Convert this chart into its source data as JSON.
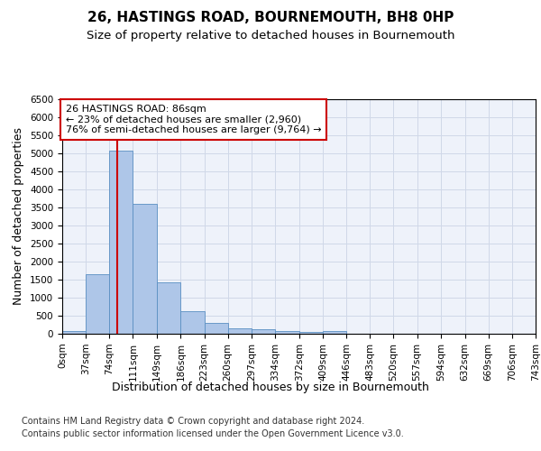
{
  "title_line1": "26, HASTINGS ROAD, BOURNEMOUTH, BH8 0HP",
  "title_line2": "Size of property relative to detached houses in Bournemouth",
  "xlabel": "Distribution of detached houses by size in Bournemouth",
  "ylabel": "Number of detached properties",
  "footnote1": "Contains HM Land Registry data © Crown copyright and database right 2024.",
  "footnote2": "Contains public sector information licensed under the Open Government Licence v3.0.",
  "annotation_line1": "26 HASTINGS ROAD: 86sqm",
  "annotation_line2": "← 23% of detached houses are smaller (2,960)",
  "annotation_line3": "76% of semi-detached houses are larger (9,764) →",
  "property_size": 86,
  "bin_edges": [
    0,
    37,
    74,
    111,
    149,
    186,
    223,
    260,
    297,
    334,
    372,
    409,
    446,
    483,
    520,
    557,
    594,
    632,
    669,
    706,
    743
  ],
  "bar_heights": [
    75,
    1650,
    5080,
    3600,
    1420,
    620,
    295,
    150,
    115,
    80,
    55,
    75,
    0,
    0,
    0,
    0,
    0,
    0,
    0,
    0
  ],
  "bar_color": "#aec6e8",
  "bar_edge_color": "#5a8fc2",
  "vline_color": "#cc0000",
  "vline_x": 86,
  "ylim": [
    0,
    6500
  ],
  "yticks": [
    0,
    500,
    1000,
    1500,
    2000,
    2500,
    3000,
    3500,
    4000,
    4500,
    5000,
    5500,
    6000,
    6500
  ],
  "grid_color": "#d0d8e8",
  "background_color": "#eef2fa",
  "annotation_box_color": "#ffffff",
  "annotation_box_edge": "#cc0000",
  "title_fontsize": 11,
  "subtitle_fontsize": 9.5,
  "axis_label_fontsize": 9,
  "tick_fontsize": 7.5,
  "annotation_fontsize": 8,
  "footnote_fontsize": 7
}
